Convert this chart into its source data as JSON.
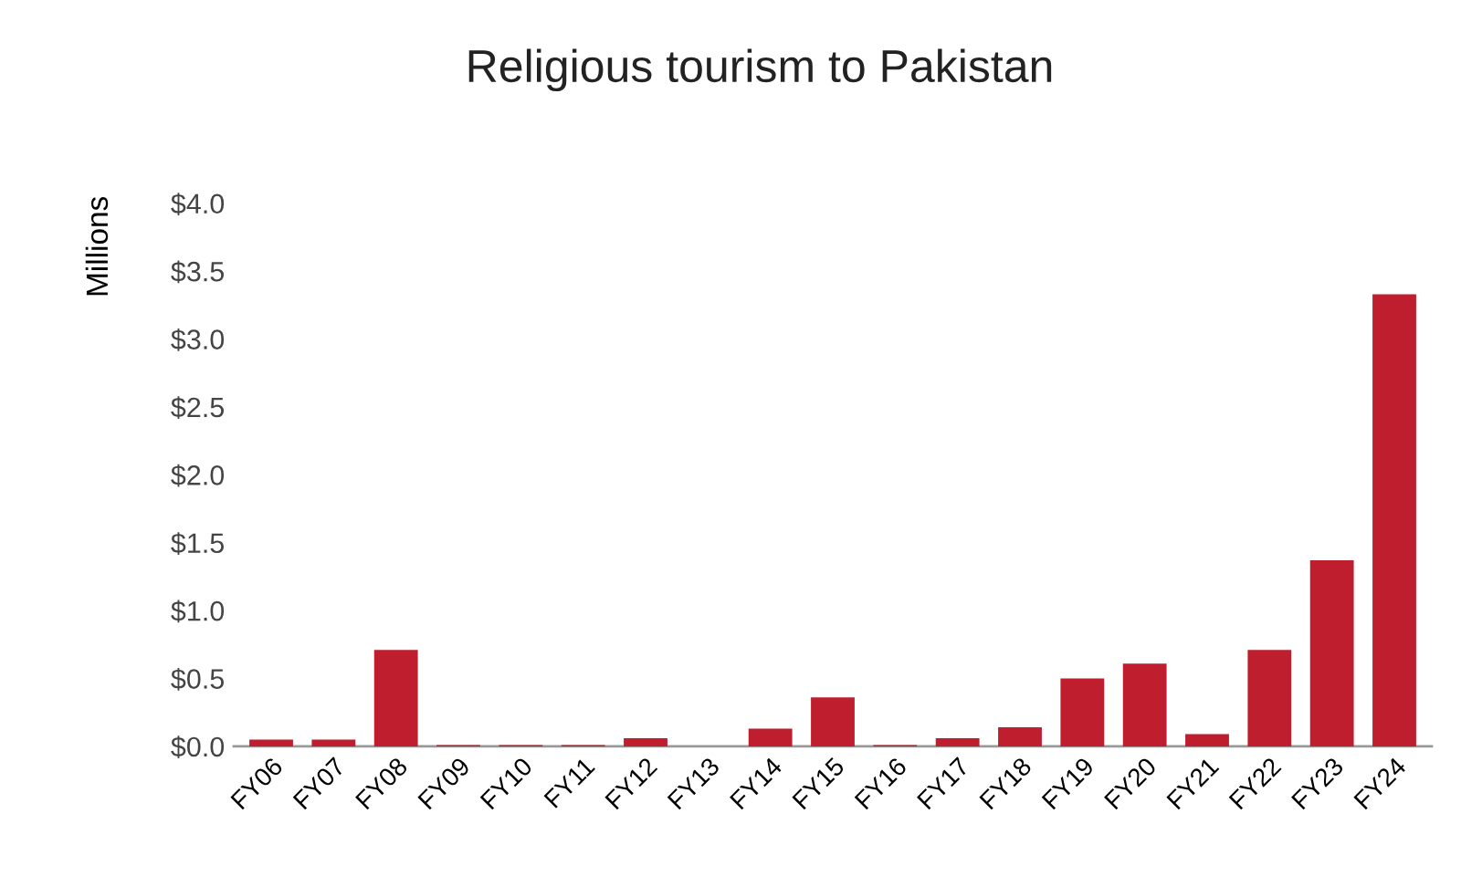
{
  "chart_data": {
    "type": "bar",
    "title": "Religious tourism to Pakistan",
    "ylabel": "Millions",
    "categories": [
      "FY06",
      "FY07",
      "FY08",
      "FY09",
      "FY10",
      "FY11",
      "FY12",
      "FY13",
      "FY14",
      "FY15",
      "FY16",
      "FY17",
      "FY18",
      "FY19",
      "FY20",
      "FY21",
      "FY22",
      "FY23",
      "FY24"
    ],
    "values": [
      0.05,
      0.05,
      0.71,
      0.01,
      0.01,
      0.01,
      0.06,
      0,
      0.13,
      0.36,
      0.01,
      0.06,
      0.14,
      0.5,
      0.61,
      0.09,
      0.71,
      1.37,
      3.33
    ],
    "color": "#be1e2d",
    "ylim": [
      0,
      4.0
    ],
    "yticks": [
      {
        "value": 0,
        "label": "$0.0"
      },
      {
        "value": 0.5,
        "label": "$0.5"
      },
      {
        "value": 1.0,
        "label": "$1.0"
      },
      {
        "value": 1.5,
        "label": "$1.5"
      },
      {
        "value": 2.0,
        "label": "$2.0"
      },
      {
        "value": 2.5,
        "label": "$2.5"
      },
      {
        "value": 3.0,
        "label": "$3.0"
      },
      {
        "value": 3.5,
        "label": "$3.5"
      },
      {
        "value": 4.0,
        "label": "$4.0"
      }
    ],
    "grid": false
  }
}
